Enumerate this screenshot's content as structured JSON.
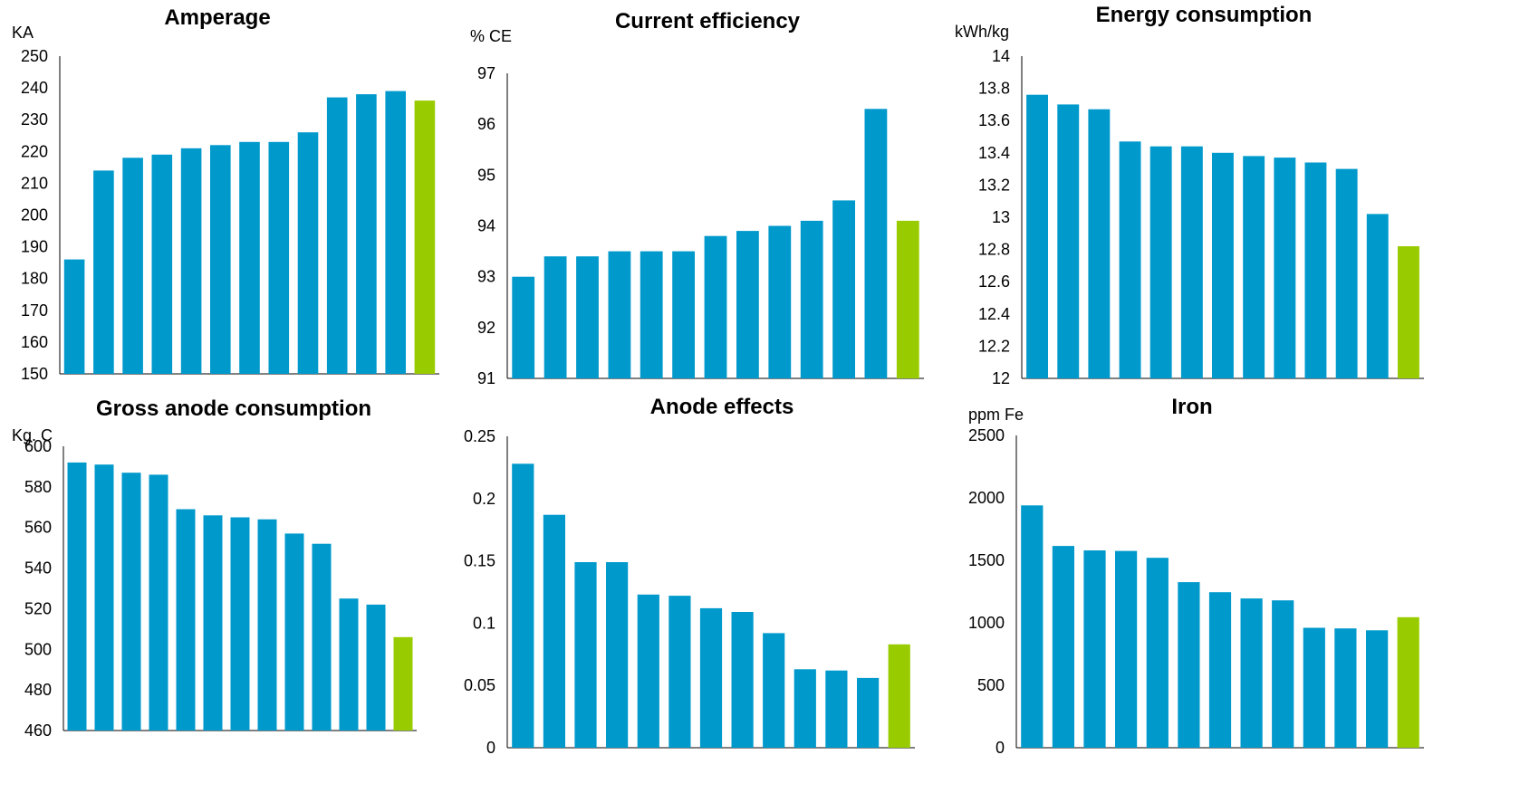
{
  "colors": {
    "bar": "#0099cc",
    "highlight": "#99cc00",
    "axis": "#000000"
  },
  "chart_data": [
    {
      "type": "bar",
      "title": "Amperage",
      "ylabel": "KA",
      "ylim": [
        150,
        250
      ],
      "yticks": [
        "150",
        "160",
        "170",
        "180",
        "190",
        "200",
        "210",
        "220",
        "230",
        "240",
        "250"
      ],
      "values": [
        186,
        214,
        218,
        219,
        221,
        222,
        223,
        223,
        226,
        237,
        238,
        239,
        236
      ],
      "highlight_index": 12,
      "grid": false
    },
    {
      "type": "bar",
      "title": "Current efficiency",
      "ylabel": "% CE",
      "ylim": [
        91,
        97
      ],
      "yticks": [
        "91",
        "92",
        "93",
        "94",
        "95",
        "96",
        "97"
      ],
      "values": [
        93.0,
        93.4,
        93.4,
        93.5,
        93.5,
        93.5,
        93.8,
        93.9,
        94.0,
        94.1,
        94.5,
        96.3,
        94.1
      ],
      "highlight_index": 12,
      "grid": false
    },
    {
      "type": "bar",
      "title": "Energy consumption",
      "ylabel": "kWh/kg",
      "ylim": [
        12,
        14
      ],
      "yticks": [
        "12",
        "12.2",
        "12.4",
        "12.6",
        "12.8",
        "13",
        "13.2",
        "13.4",
        "13.6",
        "13.8",
        "14"
      ],
      "values": [
        13.76,
        13.7,
        13.67,
        13.47,
        13.44,
        13.44,
        13.4,
        13.38,
        13.37,
        13.34,
        13.3,
        13.02,
        12.82
      ],
      "highlight_index": 12,
      "grid": false
    },
    {
      "type": "bar",
      "title": "Gross anode consumption",
      "ylabel": "Kg. C",
      "ylim": [
        460,
        600
      ],
      "yticks": [
        "460",
        "480",
        "500",
        "520",
        "540",
        "560",
        "580",
        "600"
      ],
      "values": [
        592,
        591,
        587,
        586,
        569,
        566,
        565,
        564,
        557,
        552,
        525,
        522,
        506
      ],
      "highlight_index": 12,
      "grid": false
    },
    {
      "type": "bar",
      "title": "Anode effects",
      "ylabel": "",
      "ylim": [
        0,
        0.25
      ],
      "yticks": [
        "0",
        "0.05",
        "0.1",
        "0.15",
        "0.2",
        "0.25"
      ],
      "values": [
        0.228,
        0.187,
        0.149,
        0.149,
        0.123,
        0.122,
        0.112,
        0.109,
        0.092,
        0.063,
        0.062,
        0.056,
        0.083
      ],
      "highlight_index": 12,
      "grid": false
    },
    {
      "type": "bar",
      "title": "Iron",
      "ylabel": "ppm Fe",
      "ylim": [
        0,
        2500
      ],
      "yticks": [
        "0",
        "500",
        "1000",
        "1500",
        "2000",
        "2500"
      ],
      "values": [
        1940,
        1615,
        1580,
        1575,
        1520,
        1325,
        1245,
        1195,
        1180,
        960,
        955,
        940,
        1045
      ],
      "highlight_index": 12,
      "grid": false
    }
  ]
}
